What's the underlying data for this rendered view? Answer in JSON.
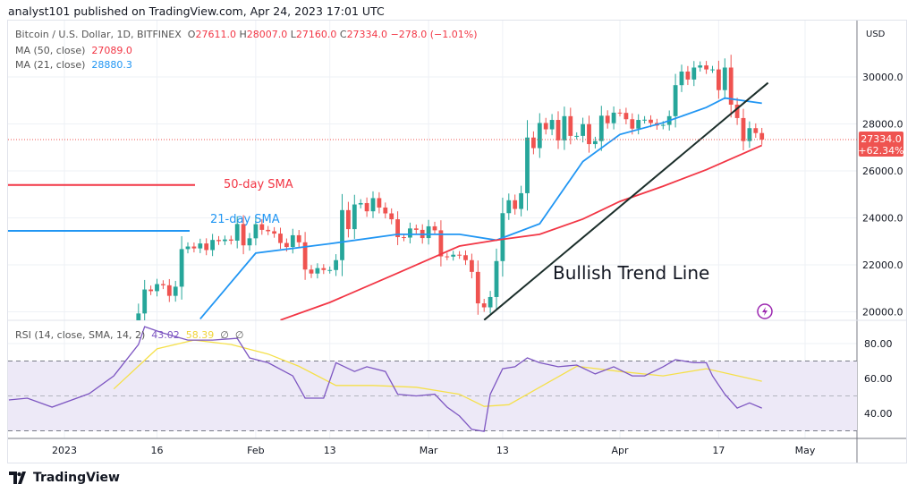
{
  "header": {
    "published": "analyst101 published on TradingView.com, Apr 24, 2023 17:01 UTC"
  },
  "legend": {
    "symbol": "Bitcoin / U.S. Dollar, 1D, BITFINEX",
    "o_label": "O",
    "o": "27611.0",
    "h_label": "H",
    "h": "28007.0",
    "l_label": "L",
    "l": "27160.0",
    "c_label": "C",
    "c": "27334.0",
    "change": "−278.0 (−1.01%)",
    "ma50_label": "MA (50, close)",
    "ma50": "27089.0",
    "ma21_label": "MA (21, close)",
    "ma21": "28880.3",
    "rsi_label": "RSI (14, close, SMA, 14, 2)",
    "rsi": "43.02",
    "rsi_sma": "58.39",
    "na1": "∅",
    "na2": "∅"
  },
  "price_axis": {
    "unit": "USD",
    "last_price": "27334.0",
    "last_change": "+62.34%"
  },
  "logo": {
    "text": "TradingView"
  },
  "colors": {
    "up": "#26a69a",
    "down": "#ef5350",
    "ma21": "#2196f3",
    "ma50": "#f23645",
    "rsi": "#7e57c2",
    "rsi_sma": "#f5e04a",
    "band": "#ede9f7"
  },
  "annotations": {
    "sma50": "50-day SMA",
    "sma21": "21-day SMA",
    "trend": "Bullish Trend Line",
    "sma50_level": 25400,
    "sma21_level": 23450,
    "trend_line": [
      [
        "2023-03-10",
        19650
      ],
      [
        "2023-04-25",
        29750
      ]
    ]
  },
  "chart_data": [
    {
      "type": "candlestick",
      "title": "Bitcoin / U.S. Dollar, 1D, BITFINEX",
      "ylabel": "USD",
      "ylim": [
        19650,
        32450
      ],
      "yticks": [
        20000,
        22000,
        24000,
        26000,
        28000,
        30000
      ],
      "ytick_labels": [
        "20000.0",
        "22000.0",
        "24000.0",
        "26000.0",
        "28000.0",
        "30000.0"
      ],
      "xticks": [
        [
          "2023-01-01",
          "2023"
        ],
        [
          "2023-01-16",
          "16"
        ],
        [
          "2023-02-01",
          "Feb"
        ],
        [
          "2023-02-13",
          "13"
        ],
        [
          "2023-03-01",
          "Mar"
        ],
        [
          "2023-03-13",
          "13"
        ],
        [
          "2023-04-01",
          "Apr"
        ],
        [
          "2023-04-17",
          "17"
        ],
        [
          "2023-05-01",
          "May"
        ]
      ],
      "start_date": "2023-01-13",
      "first_open": 18850,
      "closes": [
        19930,
        20950,
        20880,
        21180,
        21130,
        20680,
        21070,
        22670,
        22780,
        22700,
        22910,
        22630,
        23060,
        23010,
        23080,
        23030,
        23740,
        22830,
        23130,
        23730,
        23490,
        23430,
        23330,
        22930,
        22760,
        23260,
        22960,
        21800,
        21630,
        21860,
        21780,
        21780,
        22200,
        24330,
        23520,
        24570,
        24630,
        24280,
        24840,
        24440,
        24190,
        23940,
        23180,
        23160,
        23550,
        23490,
        23140,
        23640,
        23470,
        22360,
        22350,
        22430,
        22410,
        22200,
        21700,
        20360,
        20190,
        20630,
        22160,
        24200,
        24750,
        24380,
        25050,
        27420,
        26970,
        28040,
        27770,
        28170,
        27300,
        28330,
        27490,
        27490,
        27990,
        27140,
        27270,
        28350,
        28030,
        28480,
        28470,
        28200,
        27800,
        28170,
        28180,
        28040,
        27930,
        27960,
        28330,
        29650,
        30230,
        29890,
        30400,
        30490,
        30320,
        30320,
        29440,
        30400,
        28820,
        28250,
        27270,
        27820,
        27611,
        27334
      ],
      "ma21": [
        [
          "2023-01-23",
          19700
        ],
        [
          "2023-02-01",
          22500
        ],
        [
          "2023-02-13",
          22900
        ],
        [
          "2023-02-24",
          23300
        ],
        [
          "2023-03-06",
          23300
        ],
        [
          "2023-03-12",
          23050
        ],
        [
          "2023-03-19",
          23750
        ],
        [
          "2023-03-26",
          26400
        ],
        [
          "2023-04-01",
          27550
        ],
        [
          "2023-04-08",
          28050
        ],
        [
          "2023-04-15",
          28700
        ],
        [
          "2023-04-18",
          29100
        ],
        [
          "2023-04-24",
          28880
        ]
      ],
      "ma50": [
        [
          "2023-02-05",
          19650
        ],
        [
          "2023-02-13",
          20400
        ],
        [
          "2023-02-24",
          21650
        ],
        [
          "2023-03-06",
          22800
        ],
        [
          "2023-03-12",
          23050
        ],
        [
          "2023-03-19",
          23300
        ],
        [
          "2023-03-26",
          23950
        ],
        [
          "2023-04-01",
          24700
        ],
        [
          "2023-04-08",
          25350
        ],
        [
          "2023-04-15",
          26050
        ],
        [
          "2023-04-24",
          27089
        ]
      ]
    },
    {
      "type": "line",
      "title": "RSI (14, close, SMA, 14, 2)",
      "ylim": [
        27,
        92
      ],
      "yticks": [
        40,
        60,
        80
      ],
      "ytick_labels": [
        "40.00",
        "60.00",
        "80.00"
      ],
      "bands": [
        30,
        50,
        70
      ],
      "rsi": [
        [
          "2022-12-23",
          47.7
        ],
        [
          "2022-12-26",
          48.7
        ],
        [
          "2022-12-30",
          43.6
        ],
        [
          "2023-01-05",
          51.3
        ],
        [
          "2023-01-09",
          61.5
        ],
        [
          "2023-01-13",
          79.5
        ],
        [
          "2023-01-14",
          89.7
        ],
        [
          "2023-01-17",
          86
        ],
        [
          "2023-01-21",
          82
        ],
        [
          "2023-01-25",
          82
        ],
        [
          "2023-01-29",
          83
        ],
        [
          "2023-01-31",
          71.8
        ],
        [
          "2023-02-03",
          69
        ],
        [
          "2023-02-07",
          61.5
        ],
        [
          "2023-02-09",
          48.7
        ],
        [
          "2023-02-12",
          48.7
        ],
        [
          "2023-02-14",
          69
        ],
        [
          "2023-02-17",
          64
        ],
        [
          "2023-02-19",
          66.7
        ],
        [
          "2023-02-22",
          64
        ],
        [
          "2023-02-24",
          51
        ],
        [
          "2023-02-27",
          50
        ],
        [
          "2023-03-02",
          51
        ],
        [
          "2023-03-04",
          43.6
        ],
        [
          "2023-03-06",
          38.5
        ],
        [
          "2023-03-08",
          30.8
        ],
        [
          "2023-03-10",
          29.7
        ],
        [
          "2023-03-11",
          51
        ],
        [
          "2023-03-13",
          65.6
        ],
        [
          "2023-03-15",
          66.7
        ],
        [
          "2023-03-17",
          71.8
        ],
        [
          "2023-03-19",
          69
        ],
        [
          "2023-03-22",
          66.7
        ],
        [
          "2023-03-25",
          67.7
        ],
        [
          "2023-03-28",
          62.6
        ],
        [
          "2023-03-31",
          66.7
        ],
        [
          "2023-04-03",
          61.5
        ],
        [
          "2023-04-05",
          61.5
        ],
        [
          "2023-04-08",
          66.7
        ],
        [
          "2023-04-10",
          70.8
        ],
        [
          "2023-04-13",
          69
        ],
        [
          "2023-04-15",
          69
        ],
        [
          "2023-04-16",
          61.5
        ],
        [
          "2023-04-18",
          51
        ],
        [
          "2023-04-20",
          43
        ],
        [
          "2023-04-22",
          46
        ],
        [
          "2023-04-24",
          43.02
        ]
      ],
      "rsi_sma": [
        [
          "2023-01-09",
          54
        ],
        [
          "2023-01-16",
          77
        ],
        [
          "2023-01-22",
          82
        ],
        [
          "2023-01-28",
          79.5
        ],
        [
          "2023-02-03",
          74
        ],
        [
          "2023-02-08",
          67
        ],
        [
          "2023-02-14",
          56
        ],
        [
          "2023-02-20",
          56
        ],
        [
          "2023-02-27",
          55
        ],
        [
          "2023-03-06",
          51
        ],
        [
          "2023-03-10",
          44
        ],
        [
          "2023-03-14",
          45
        ],
        [
          "2023-03-19",
          55
        ],
        [
          "2023-03-25",
          67
        ],
        [
          "2023-04-01",
          64
        ],
        [
          "2023-04-08",
          61.5
        ],
        [
          "2023-04-15",
          65.6
        ],
        [
          "2023-04-24",
          58.39
        ]
      ]
    }
  ]
}
